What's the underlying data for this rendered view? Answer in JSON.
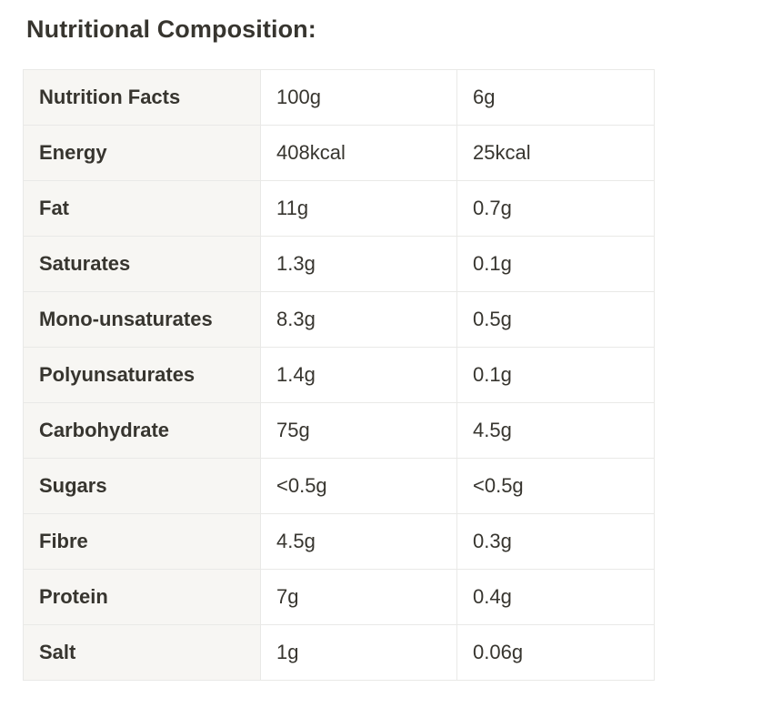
{
  "heading": "Nutritional Composition:",
  "table": {
    "rows": [
      {
        "label": "Nutrition Facts",
        "per100g": "100g",
        "perServing": "6g"
      },
      {
        "label": "Energy",
        "per100g": "408kcal",
        "perServing": "25kcal"
      },
      {
        "label": "Fat",
        "per100g": "11g",
        "perServing": "0.7g"
      },
      {
        "label": "Saturates",
        "per100g": "1.3g",
        "perServing": "0.1g"
      },
      {
        "label": "Mono-unsaturates",
        "per100g": "8.3g",
        "perServing": "0.5g"
      },
      {
        "label": "Polyunsaturates",
        "per100g": "1.4g",
        "perServing": "0.1g"
      },
      {
        "label": "Carbohydrate",
        "per100g": "75g",
        "perServing": "4.5g"
      },
      {
        "label": "Sugars",
        "per100g": "<0.5g",
        "perServing": "<0.5g"
      },
      {
        "label": "Fibre",
        "per100g": "4.5g",
        "perServing": "0.3g"
      },
      {
        "label": "Protein",
        "per100g": "7g",
        "perServing": "0.4g"
      },
      {
        "label": "Salt",
        "per100g": "1g",
        "perServing": "0.06g"
      }
    ]
  },
  "colors": {
    "text": "#37352f",
    "label_background": "#f7f6f3",
    "border": "#e9e9e7"
  }
}
